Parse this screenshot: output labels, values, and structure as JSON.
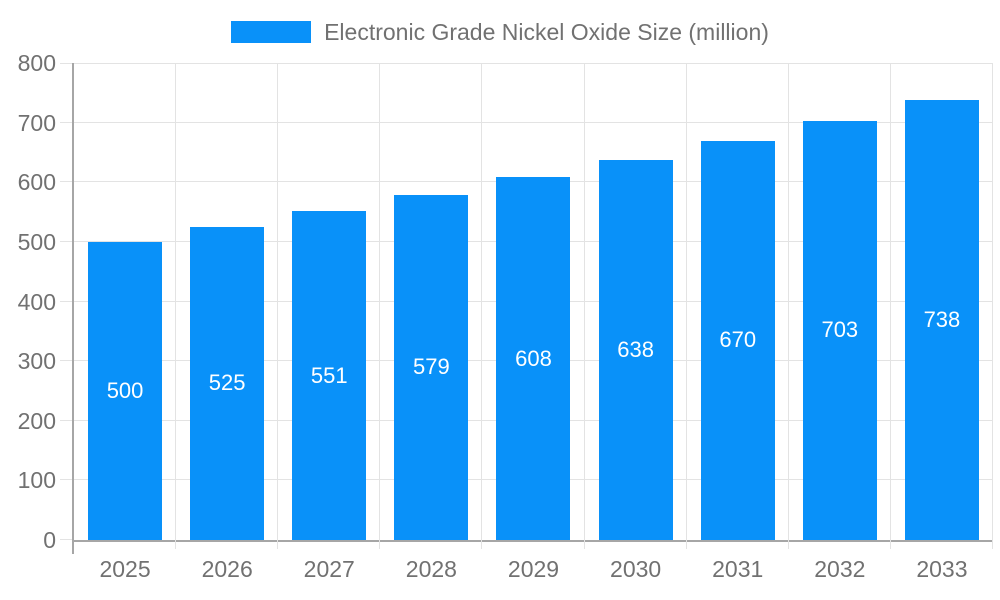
{
  "chart_data": {
    "type": "bar",
    "title": "Electronic Grade Nickel Oxide Size (million)",
    "categories": [
      "2025",
      "2026",
      "2027",
      "2028",
      "2029",
      "2030",
      "2031",
      "2032",
      "2033"
    ],
    "series": [
      {
        "name": "Electronic Grade Nickel Oxide Size (million)",
        "values": [
          500,
          525,
          551,
          579,
          608,
          638,
          670,
          703,
          738
        ]
      }
    ],
    "xlabel": "",
    "ylabel": "",
    "ylim": [
      0,
      800
    ],
    "y_ticks": [
      0,
      100,
      200,
      300,
      400,
      500,
      600,
      700,
      800
    ],
    "grid": true,
    "legend_position": "top",
    "bar_label_position": "inside-center"
  },
  "colors": {
    "bar": "#0991f9",
    "bar_label": "#ffffff",
    "axis_line": "#a6a6a6",
    "grid_line": "#e3e3e3",
    "text": "#717171",
    "background": "#ffffff"
  }
}
